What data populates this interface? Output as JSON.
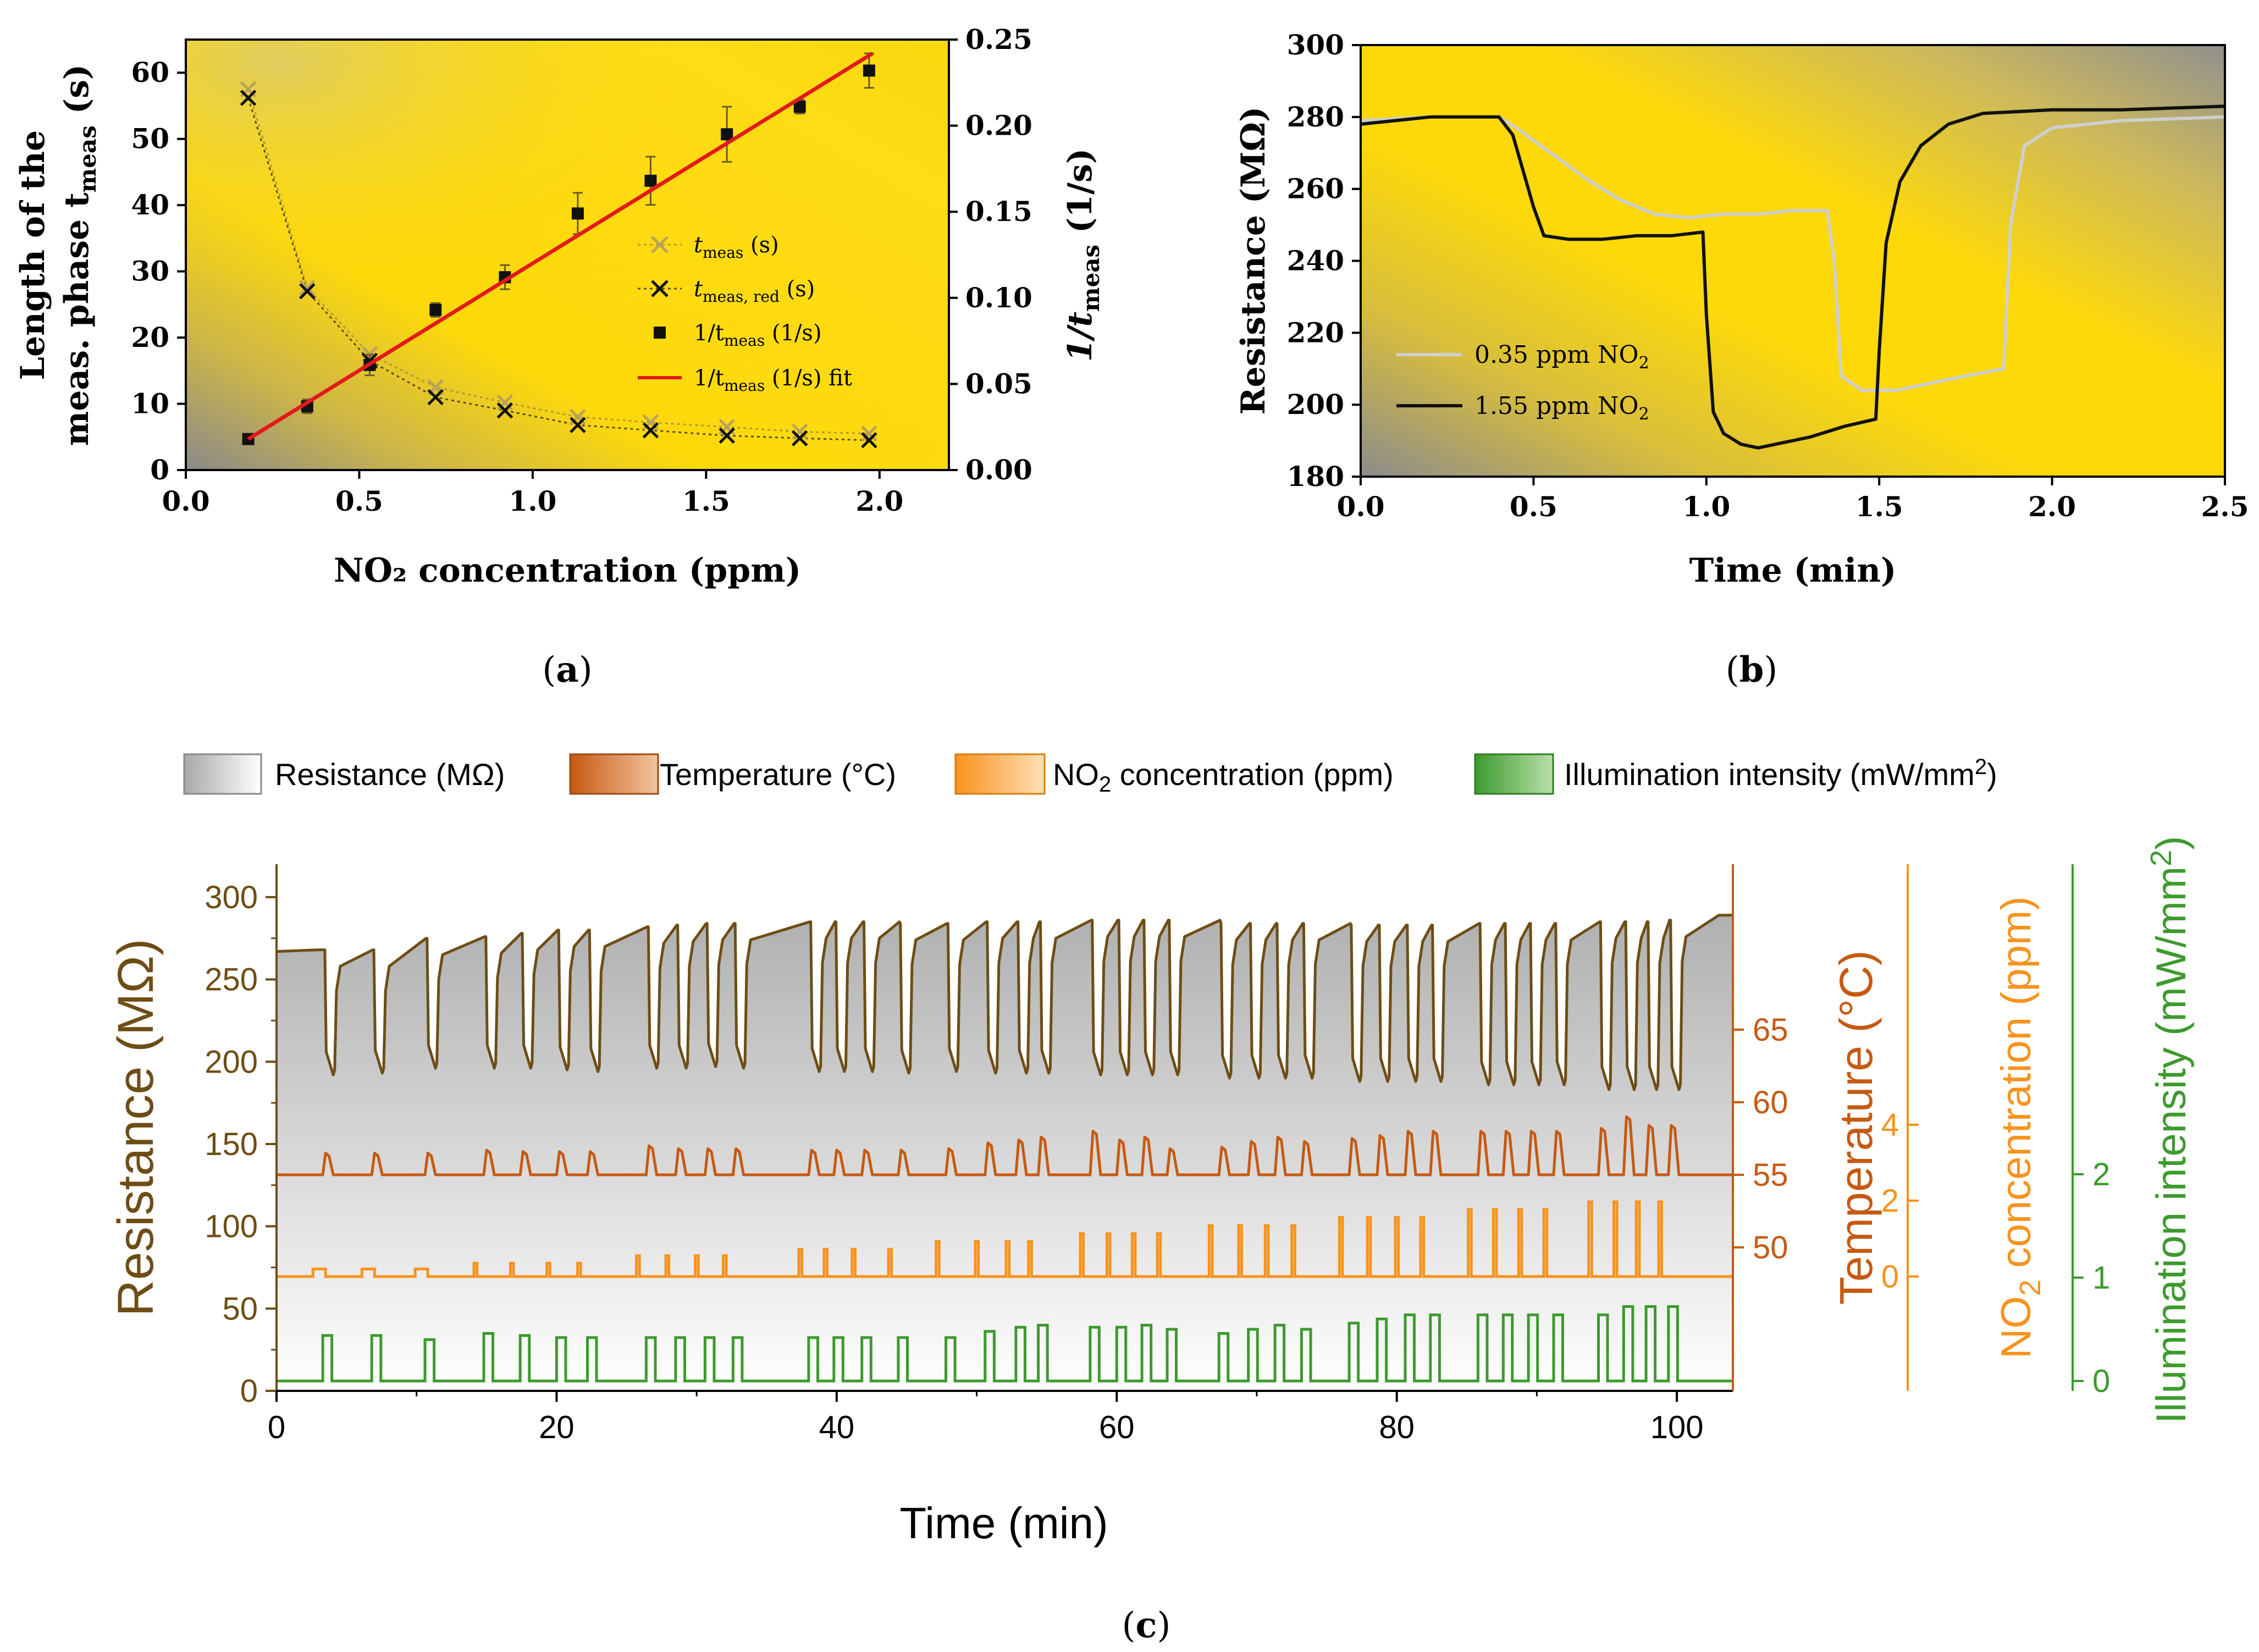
{
  "colors": {
    "bg_yellow": "#fdd90a",
    "bg_gray": "#8f8f8f",
    "fit_red": "#e31a1c",
    "resistance_brown": "#6e4d15",
    "temperature": "#c65a12",
    "no2": "#f7931e",
    "illumination": "#3d9a2e",
    "light_gray_trace": "#cfcfcf"
  },
  "chart_data": [
    {
      "id": "a",
      "type": "scatter",
      "panel_label": "a",
      "xlabel": "NO₂ concentration (ppm)",
      "ylabel_line1": "Length of the",
      "ylabel_line2": "meas. phase t",
      "ylabel_sub": "meas",
      "ylabel_tail": " (s)",
      "y2label": "1/t",
      "y2label_sub": "meas",
      "y2label_tail": " (1/s)",
      "xlim": [
        0.0,
        2.2
      ],
      "ylim": [
        0,
        65
      ],
      "y2lim": [
        0.0,
        0.25
      ],
      "xticks": [
        "0.0",
        "0.5",
        "1.0",
        "1.5",
        "2.0"
      ],
      "yticks": [
        "0",
        "10",
        "20",
        "30",
        "40",
        "50",
        "60"
      ],
      "y2ticks": [
        "0.00",
        "0.05",
        "0.10",
        "0.15",
        "0.20",
        "0.25"
      ],
      "legend": [
        {
          "name": "t",
          "sub": "meas",
          "tail": " (s)",
          "marker": "x-light"
        },
        {
          "name": "t",
          "sub": "meas, red",
          "tail": " (s)",
          "marker": "x-dark"
        },
        {
          "name": "1/t",
          "sub": "meas",
          "tail": " (1/s)",
          "marker": "square"
        },
        {
          "name": "1/t",
          "sub": "meas",
          "tail": " (1/s) fit",
          "marker": "line"
        }
      ],
      "series": [
        {
          "name": "t_meas (s)",
          "axis": "left",
          "x": [
            0.18,
            0.35,
            0.53,
            0.72,
            0.92,
            1.13,
            1.34,
            1.56,
            1.77,
            1.97
          ],
          "y": [
            57.5,
            27.5,
            17.5,
            12.5,
            10.2,
            8.0,
            7.2,
            6.5,
            5.8,
            5.5
          ]
        },
        {
          "name": "t_meas,red (s)",
          "axis": "left",
          "x": [
            0.18,
            0.35,
            0.53,
            0.72,
            0.92,
            1.13,
            1.34,
            1.56,
            1.77,
            1.97
          ],
          "y": [
            56.2,
            27.0,
            16.5,
            11.0,
            9.0,
            6.8,
            6.0,
            5.2,
            4.8,
            4.5
          ]
        },
        {
          "name": "1/t_meas (1/s)",
          "axis": "right",
          "x": [
            0.18,
            0.35,
            0.53,
            0.72,
            0.92,
            1.13,
            1.34,
            1.56,
            1.77,
            1.97
          ],
          "y": [
            0.018,
            0.037,
            0.061,
            0.093,
            0.112,
            0.149,
            0.168,
            0.195,
            0.211,
            0.232
          ],
          "err": [
            0.002,
            0.004,
            0.006,
            0.004,
            0.007,
            0.012,
            0.014,
            0.016,
            0.004,
            0.01
          ]
        },
        {
          "name": "1/t_meas (1/s) fit",
          "axis": "right",
          "x": [
            0.18,
            1.98
          ],
          "y": [
            0.018,
            0.242
          ]
        }
      ]
    },
    {
      "id": "b",
      "type": "line",
      "panel_label": "b",
      "xlabel": "Time (min)",
      "ylabel": "Resistance (MΩ)",
      "xlim": [
        0.0,
        2.5
      ],
      "ylim": [
        180,
        300
      ],
      "xticks": [
        "0.0",
        "0.5",
        "1.0",
        "1.5",
        "2.0",
        "2.5"
      ],
      "yticks": [
        "180",
        "200",
        "220",
        "240",
        "260",
        "280",
        "300"
      ],
      "legend": [
        {
          "name": "0.35 ppm NO",
          "sub": "2",
          "color": "#cfcfcf"
        },
        {
          "name": "1.55 ppm NO",
          "sub": "2",
          "color": "#111111"
        }
      ],
      "series": [
        {
          "name": "0.35 ppm NO2",
          "x": [
            0.0,
            0.1,
            0.2,
            0.3,
            0.4,
            0.45,
            0.55,
            0.65,
            0.75,
            0.85,
            0.95,
            1.05,
            1.15,
            1.25,
            1.35,
            1.37,
            1.39,
            1.45,
            1.55,
            1.65,
            1.75,
            1.86,
            1.88,
            1.92,
            2.0,
            2.2,
            2.5
          ],
          "y": [
            279,
            279.5,
            280,
            280,
            280,
            277,
            270,
            263,
            257,
            253,
            252,
            253,
            253,
            254,
            254,
            240,
            208,
            204,
            204,
            206,
            208,
            210,
            250,
            272,
            277,
            279,
            280
          ]
        },
        {
          "name": "1.55 ppm NO2",
          "x": [
            0.0,
            0.1,
            0.2,
            0.3,
            0.4,
            0.44,
            0.5,
            0.53,
            0.6,
            0.7,
            0.8,
            0.9,
            0.99,
            1.0,
            1.02,
            1.05,
            1.1,
            1.15,
            1.2,
            1.3,
            1.4,
            1.49,
            1.5,
            1.52,
            1.56,
            1.62,
            1.7,
            1.8,
            2.0,
            2.2,
            2.5
          ],
          "y": [
            278,
            279,
            280,
            280,
            280,
            275,
            255,
            247,
            246,
            246,
            247,
            247,
            248,
            225,
            198,
            192,
            189,
            188,
            189,
            191,
            194,
            196,
            215,
            245,
            262,
            272,
            278,
            281,
            282,
            282,
            283
          ]
        }
      ]
    },
    {
      "id": "c",
      "type": "line",
      "panel_label": "c",
      "xlabel": "Time (min)",
      "xlim": [
        0,
        104
      ],
      "xticks": [
        "0",
        "20",
        "40",
        "60",
        "80",
        "100"
      ],
      "legend": [
        {
          "name": "Resistance (MΩ)",
          "color": "#bdbdbd"
        },
        {
          "name": "Temperature (°C)",
          "color": "#c65a12"
        },
        {
          "name": "NO",
          "sub": "2",
          "tail": " concentration (ppm)",
          "color": "#f7931e"
        },
        {
          "name": "Illumination intensity (mW/mm",
          "sup": "2",
          "tail": ")",
          "color": "#3d9a2e"
        }
      ],
      "axes": {
        "resistance": {
          "label": "Resistance (MΩ)",
          "ylim": [
            0,
            320
          ],
          "ticks": [
            "0",
            "50",
            "100",
            "150",
            "200",
            "250",
            "300"
          ]
        },
        "temperature": {
          "label": "Temperature (°C)",
          "ticks": [
            "50",
            "55",
            "60",
            "65"
          ]
        },
        "no2": {
          "label_pre": "NO",
          "label_sub": "2",
          "label_post": " concentration (ppm)",
          "ticks": [
            "0",
            "2",
            "4"
          ]
        },
        "illumination": {
          "label_pre": "Illumination intensity (mW/mm",
          "label_sup": "2",
          "label_post": ")",
          "ticks": [
            "0",
            "1",
            "2"
          ]
        }
      },
      "pulse_times_min": [
        3.5,
        7.0,
        10.8,
        15.0,
        17.6,
        20.2,
        22.4,
        26.6,
        28.7,
        30.8,
        32.8,
        38.2,
        40.0,
        42.0,
        44.6,
        48.0,
        50.8,
        53.0,
        54.6,
        58.3,
        60.2,
        62.0,
        63.8,
        67.5,
        69.6,
        71.5,
        73.4,
        76.8,
        78.8,
        80.8,
        82.6,
        86.0,
        87.8,
        89.6,
        91.4,
        94.6,
        96.4,
        98.0,
        99.6
      ],
      "no2_levels_ppm": [
        0.2,
        0.2,
        0.2,
        0.35,
        0.35,
        0.35,
        0.35,
        0.55,
        0.55,
        0.55,
        0.55,
        0.72,
        0.72,
        0.72,
        0.72,
        0.92,
        0.92,
        0.92,
        0.92,
        1.13,
        1.13,
        1.13,
        1.13,
        1.34,
        1.34,
        1.34,
        1.34,
        1.56,
        1.56,
        1.56,
        1.56,
        1.77,
        1.77,
        1.77,
        1.77,
        1.97,
        1.97,
        1.97,
        1.97
      ],
      "resistance_baseline_MOhm": [
        268,
        268,
        275,
        276,
        278,
        280,
        280,
        282,
        283,
        284,
        284,
        285,
        285,
        285,
        284,
        284,
        285,
        285,
        285,
        286,
        286,
        286,
        286,
        284,
        284,
        284,
        284,
        283,
        283,
        283,
        283,
        284,
        284,
        284,
        284,
        285,
        285,
        285,
        286
      ],
      "resistance_min_MOhm": [
        192,
        193,
        196,
        196,
        196,
        195,
        194,
        196,
        196,
        197,
        196,
        194,
        194,
        194,
        193,
        194,
        193,
        193,
        193,
        192,
        192,
        192,
        192,
        190,
        190,
        190,
        190,
        188,
        188,
        188,
        188,
        186,
        186,
        186,
        186,
        183,
        183,
        183,
        183
      ],
      "illumination_mW_mm2": [
        0.44,
        0.44,
        0.4,
        0.46,
        0.44,
        0.42,
        0.42,
        0.42,
        0.42,
        0.42,
        0.42,
        0.42,
        0.42,
        0.42,
        0.42,
        0.42,
        0.48,
        0.52,
        0.54,
        0.52,
        0.52,
        0.54,
        0.5,
        0.46,
        0.5,
        0.54,
        0.5,
        0.56,
        0.6,
        0.64,
        0.64,
        0.64,
        0.64,
        0.64,
        0.64,
        0.64,
        0.72,
        0.72,
        0.72
      ],
      "temperature_peak_C": [
        56.5,
        56.5,
        56.5,
        56.7,
        56.6,
        56.6,
        56.6,
        57.0,
        56.8,
        56.8,
        56.8,
        56.7,
        56.7,
        56.7,
        56.7,
        56.8,
        57.2,
        57.4,
        57.6,
        58.0,
        57.4,
        57.6,
        56.8,
        56.9,
        57.3,
        57.6,
        57.3,
        57.5,
        57.7,
        58.0,
        58.0,
        58.0,
        58.0,
        58.0,
        58.0,
        58.2,
        59.0,
        58.4,
        58.4
      ]
    }
  ]
}
